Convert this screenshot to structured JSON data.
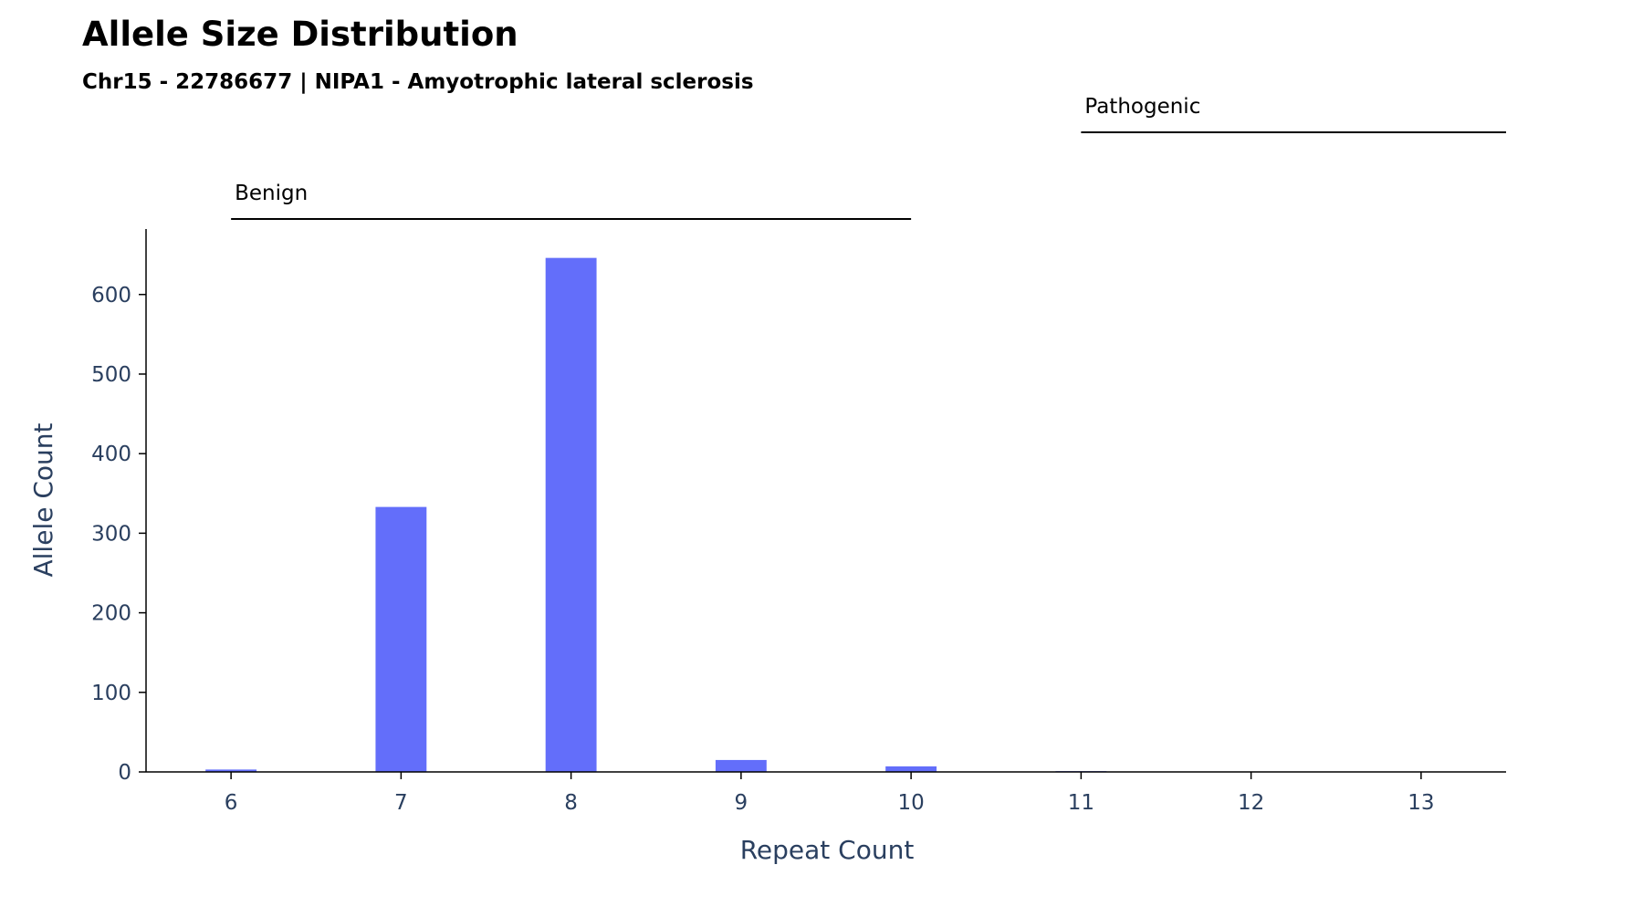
{
  "chart_data": {
    "type": "bar",
    "title": "Allele Size Distribution",
    "subtitle": "Chr15 - 22786677 | NIPA1 - Amyotrophic lateral sclerosis",
    "xlabel": "Repeat Count",
    "ylabel": "Allele Count",
    "x": [
      6,
      7,
      8,
      9,
      10,
      11,
      12,
      13
    ],
    "values": [
      3,
      333,
      646,
      15,
      7,
      1,
      0,
      0
    ],
    "xlim": [
      5.5,
      13.5
    ],
    "ylim": [
      0,
      680
    ],
    "xticks": [
      "6",
      "7",
      "8",
      "9",
      "10",
      "11",
      "12",
      "13"
    ],
    "yticks": [
      "0",
      "100",
      "200",
      "300",
      "400",
      "500",
      "600"
    ],
    "ytick_values": [
      0,
      100,
      200,
      300,
      400,
      500,
      600
    ],
    "grid": false,
    "bar_color": "#636efa",
    "ranges": [
      {
        "label": "Benign",
        "start": 6,
        "end": 10
      },
      {
        "label": "Pathogenic",
        "start": 11,
        "end": 13.5
      }
    ]
  }
}
